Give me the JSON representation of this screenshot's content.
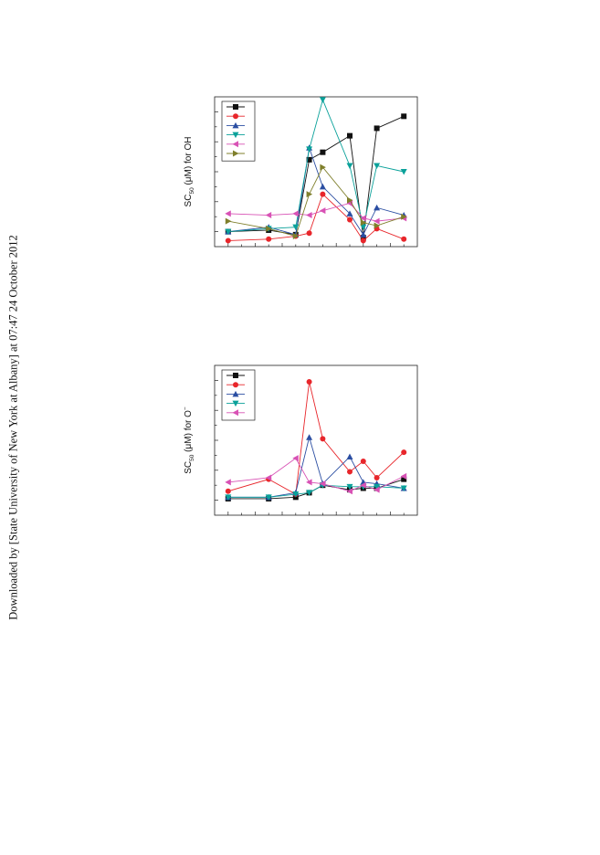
{
  "side_note": "Downloaded by [State University of New York at Albany] at 07:47 24 October 2012",
  "chart_data": [
    {
      "type": "line",
      "ylabel_main": "SC",
      "ylabel_sub": "50",
      "ylabel_rest": " (μM) for OH",
      "xlim": [
        0,
        15
      ],
      "ylim": [
        0,
        10
      ],
      "grid": false,
      "legend": "top-left",
      "x": [
        1,
        4,
        6,
        7,
        8,
        10,
        11,
        12,
        14
      ],
      "series": [
        {
          "color": "#111111",
          "marker": "square",
          "values": [
            1.0,
            1.1,
            0.8,
            5.8,
            6.3,
            7.4,
            0.6,
            7.9,
            8.7
          ]
        },
        {
          "color": "#e8262b",
          "marker": "circle",
          "values": [
            0.4,
            0.5,
            0.7,
            0.9,
            3.5,
            1.8,
            0.4,
            1.2,
            0.5
          ]
        },
        {
          "color": "#2b4ea2",
          "marker": "triangle-up",
          "values": [
            1.0,
            1.3,
            0.8,
            6.6,
            4.0,
            2.2,
            0.8,
            2.6,
            2.1
          ]
        },
        {
          "color": "#0aa19a",
          "marker": "triangle-down",
          "values": [
            1.0,
            1.2,
            1.3,
            6.5,
            9.8,
            5.4,
            1.3,
            5.4,
            5.0
          ]
        },
        {
          "color": "#d852b5",
          "marker": "triangle-left",
          "values": [
            2.2,
            2.1,
            2.2,
            2.1,
            2.4,
            2.9,
            1.9,
            1.7,
            1.9
          ]
        },
        {
          "color": "#7f7f2b",
          "marker": "triangle-right",
          "values": [
            1.7,
            1.2,
            0.7,
            3.5,
            5.3,
            3.1,
            1.6,
            1.4,
            2.0
          ]
        }
      ]
    },
    {
      "type": "line",
      "ylabel_main": "SC",
      "ylabel_sub": "50",
      "ylabel_rest": " (μM) for O",
      "ylabel_sup": "−",
      "xlim": [
        0,
        15
      ],
      "ylim": [
        0,
        10
      ],
      "grid": false,
      "legend": "top-left",
      "x": [
        1,
        4,
        6,
        7,
        8,
        10,
        11,
        12,
        14
      ],
      "series": [
        {
          "color": "#111111",
          "marker": "square",
          "values": [
            1.1,
            1.1,
            1.2,
            1.5,
            2.0,
            1.7,
            1.8,
            1.8,
            2.4
          ]
        },
        {
          "color": "#e8262b",
          "marker": "circle",
          "values": [
            1.6,
            2.4,
            1.4,
            8.9,
            5.1,
            2.9,
            3.6,
            2.5,
            4.2
          ]
        },
        {
          "color": "#2b4ea2",
          "marker": "triangle-up",
          "values": [
            1.2,
            1.2,
            1.5,
            5.2,
            2.1,
            3.9,
            2.2,
            2.1,
            1.8
          ]
        },
        {
          "color": "#0aa19a",
          "marker": "triangle-down",
          "values": [
            1.2,
            1.2,
            1.4,
            1.5,
            2.0,
            1.9,
            1.9,
            1.9,
            1.8
          ]
        },
        {
          "color": "#d852b5",
          "marker": "triangle-left",
          "values": [
            2.2,
            2.5,
            3.8,
            2.2,
            2.1,
            1.6,
            2.0,
            1.7,
            2.6
          ]
        }
      ]
    }
  ]
}
